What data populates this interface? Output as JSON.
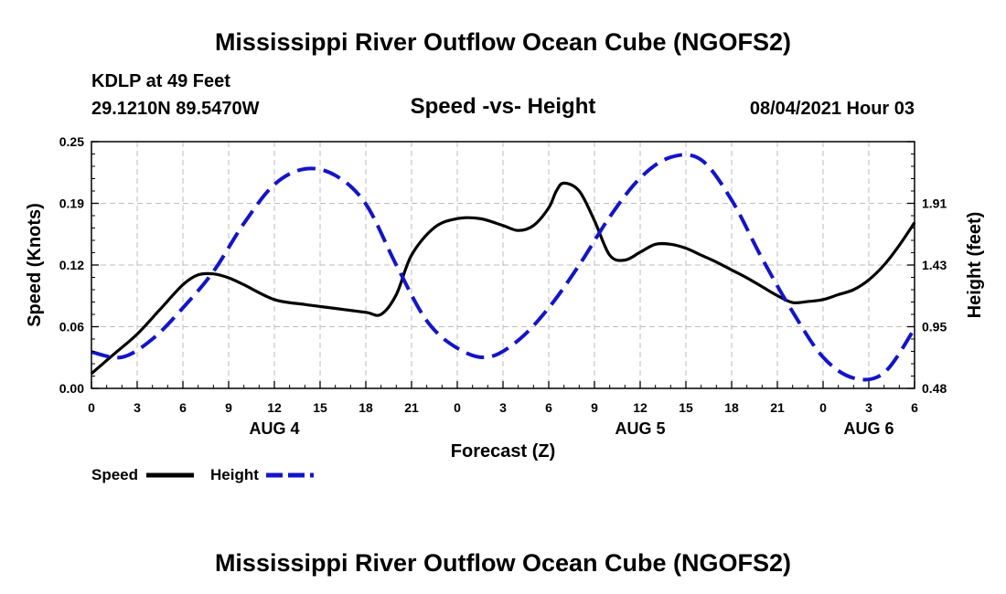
{
  "header": {
    "title_top": "Mississippi River Outflow Ocean Cube (NGOFS2)",
    "station": "KDLP at 49 Feet",
    "coords": "29.1210N  89.5470W",
    "subtitle": "Speed -vs- Height",
    "datetime": "08/04/2021 Hour 03",
    "title_bottom": "Mississippi River Outflow Ocean Cube (NGOFS2)"
  },
  "legend": {
    "speed_label": "Speed",
    "height_label": "Height"
  },
  "colors": {
    "speed": "#000000",
    "height": "#1414c8",
    "grid": "#bdbdbd"
  },
  "chart_data": {
    "type": "line",
    "title": "Speed -vs- Height",
    "xlabel": "Forecast (Z)",
    "ylabel": "Speed (Knots)",
    "y2label": "Height (feet)",
    "xlim": [
      0,
      54
    ],
    "ylim": [
      0,
      0.25
    ],
    "y2lim": [
      0.48,
      2.38
    ],
    "x_ticks": [
      0,
      3,
      6,
      9,
      12,
      15,
      18,
      21,
      24,
      27,
      30,
      33,
      36,
      39,
      42,
      45,
      48,
      51,
      54
    ],
    "x_tick_labels": [
      "0",
      "3",
      "6",
      "9",
      "12",
      "15",
      "18",
      "21",
      "0",
      "3",
      "6",
      "9",
      "12",
      "15",
      "18",
      "21",
      "0",
      "3",
      "6"
    ],
    "y_ticks": [
      0,
      0.0625,
      0.125,
      0.1875,
      0.25
    ],
    "y_tick_labels": [
      "0.00",
      "0.06",
      "0.12",
      "0.19",
      "0.25"
    ],
    "y2_ticks": [
      0.48,
      0.955,
      1.43,
      1.905,
      2.38
    ],
    "y2_tick_labels": [
      "0.48",
      "0.95",
      "1.43",
      "1.91",
      ""
    ],
    "date_labels": [
      {
        "x": 12,
        "label": "AUG 4"
      },
      {
        "x": 36,
        "label": "AUG 5"
      },
      {
        "x": 51,
        "label": "AUG 6"
      }
    ],
    "series": [
      {
        "name": "Speed",
        "axis": "left",
        "style": "solid",
        "x": [
          0,
          1.5,
          3,
          4.5,
          6,
          7,
          8,
          9,
          10,
          12,
          14,
          16,
          18,
          19,
          20,
          21,
          22.5,
          24,
          25.5,
          27,
          28,
          29,
          30,
          30.5,
          31,
          32,
          33,
          34,
          35,
          36,
          37,
          38,
          39,
          40,
          41,
          42,
          43,
          44,
          45,
          46,
          47,
          48,
          49,
          50,
          51,
          52,
          53,
          54
        ],
        "values": [
          0.015,
          0.035,
          0.055,
          0.08,
          0.105,
          0.115,
          0.116,
          0.112,
          0.105,
          0.09,
          0.085,
          0.081,
          0.077,
          0.075,
          0.095,
          0.135,
          0.163,
          0.172,
          0.172,
          0.165,
          0.16,
          0.165,
          0.183,
          0.2,
          0.208,
          0.2,
          0.17,
          0.135,
          0.13,
          0.138,
          0.146,
          0.146,
          0.142,
          0.135,
          0.128,
          0.12,
          0.112,
          0.103,
          0.094,
          0.087,
          0.088,
          0.09,
          0.095,
          0.1,
          0.11,
          0.125,
          0.145,
          0.168
        ]
      },
      {
        "name": "Height",
        "axis": "right",
        "style": "dashed",
        "x": [
          0,
          2,
          4,
          6,
          8,
          10,
          12,
          14,
          16,
          18,
          20,
          22,
          24,
          26,
          28,
          30,
          32,
          34,
          36,
          38,
          40,
          42,
          44,
          46,
          48,
          50,
          52,
          54
        ],
        "values": [
          0.76,
          0.72,
          0.86,
          1.1,
          1.38,
          1.75,
          2.05,
          2.17,
          2.12,
          1.9,
          1.43,
          1.0,
          0.79,
          0.72,
          0.85,
          1.1,
          1.43,
          1.8,
          2.1,
          2.26,
          2.24,
          1.93,
          1.48,
          1.07,
          0.72,
          0.56,
          0.6,
          0.94
        ]
      }
    ]
  }
}
